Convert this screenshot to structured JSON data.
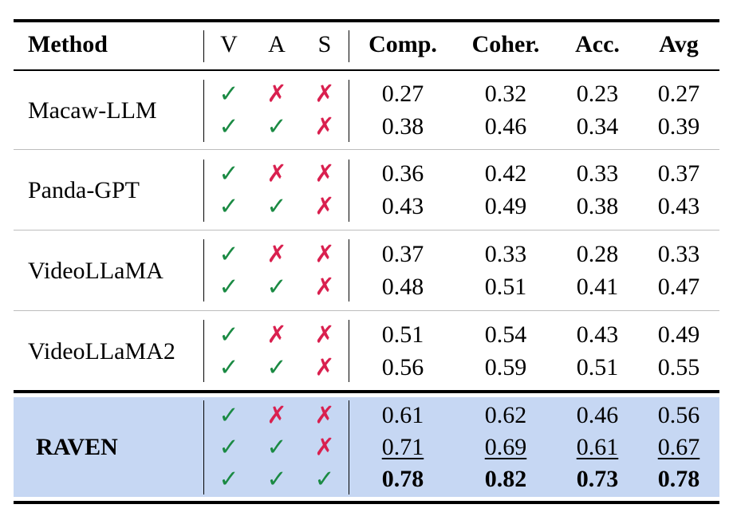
{
  "table": {
    "headers": [
      "Method",
      "V",
      "A",
      "S",
      "Comp.",
      "Coher.",
      "Acc.",
      "Avg"
    ],
    "marks": {
      "yes": "✓",
      "no": "✗"
    },
    "colors": {
      "check": "#1a8a43",
      "cross": "#d9204f",
      "highlight": "#c6d7f3"
    },
    "groups": [
      {
        "method": "Macaw-LLM",
        "rows": [
          {
            "v": true,
            "a": false,
            "s": false,
            "comp": "0.27",
            "coher": "0.32",
            "acc": "0.23",
            "avg": "0.27"
          },
          {
            "v": true,
            "a": true,
            "s": false,
            "comp": "0.38",
            "coher": "0.46",
            "acc": "0.34",
            "avg": "0.39"
          }
        ]
      },
      {
        "method": "Panda-GPT",
        "rows": [
          {
            "v": true,
            "a": false,
            "s": false,
            "comp": "0.36",
            "coher": "0.42",
            "acc": "0.33",
            "avg": "0.37"
          },
          {
            "v": true,
            "a": true,
            "s": false,
            "comp": "0.43",
            "coher": "0.49",
            "acc": "0.38",
            "avg": "0.43"
          }
        ]
      },
      {
        "method": "VideoLLaMA",
        "rows": [
          {
            "v": true,
            "a": false,
            "s": false,
            "comp": "0.37",
            "coher": "0.33",
            "acc": "0.28",
            "avg": "0.33"
          },
          {
            "v": true,
            "a": true,
            "s": false,
            "comp": "0.48",
            "coher": "0.51",
            "acc": "0.41",
            "avg": "0.47"
          }
        ]
      },
      {
        "method": "VideoLLaMA2",
        "rows": [
          {
            "v": true,
            "a": false,
            "s": false,
            "comp": "0.51",
            "coher": "0.54",
            "acc": "0.43",
            "avg": "0.49"
          },
          {
            "v": true,
            "a": true,
            "s": false,
            "comp": "0.56",
            "coher": "0.59",
            "acc": "0.51",
            "avg": "0.55"
          }
        ]
      }
    ],
    "raven": {
      "method": "RAVEN",
      "rows": [
        {
          "v": true,
          "a": false,
          "s": false,
          "comp": "0.61",
          "coher": "0.62",
          "acc": "0.46",
          "avg": "0.56",
          "style": "normal"
        },
        {
          "v": true,
          "a": true,
          "s": false,
          "comp": "0.71",
          "coher": "0.69",
          "acc": "0.61",
          "avg": "0.67",
          "style": "underline"
        },
        {
          "v": true,
          "a": true,
          "s": true,
          "comp": "0.78",
          "coher": "0.82",
          "acc": "0.73",
          "avg": "0.78",
          "style": "bold"
        }
      ]
    }
  }
}
